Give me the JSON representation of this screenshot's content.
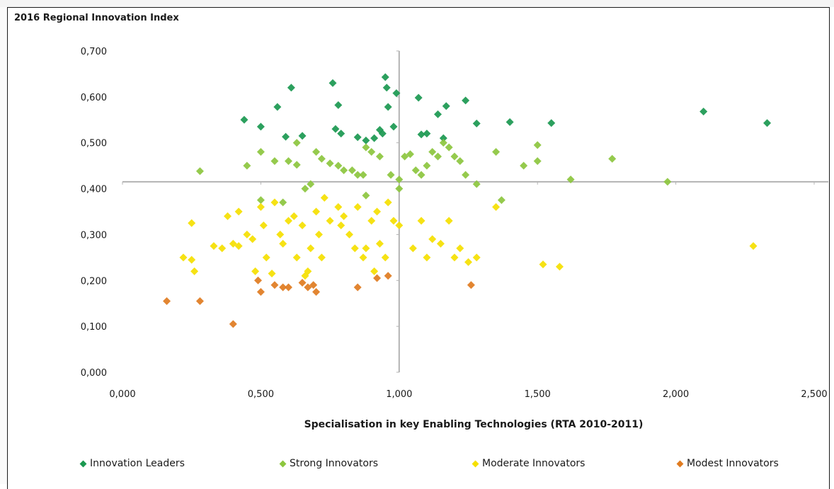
{
  "chart_data": {
    "type": "scatter",
    "title": "2016 Regional Innovation Index",
    "xlabel": "Specialisation in key Enabling Technologies (RTA 2010-2011)",
    "ylabel": "",
    "xlim": [
      0,
      2.5
    ],
    "ylim": [
      0,
      0.7
    ],
    "xticks": [
      "0,000",
      "0,500",
      "1,000",
      "1,500",
      "2,000",
      "2,500"
    ],
    "yticks": [
      "0,000",
      "0,100",
      "0,200",
      "0,300",
      "0,400",
      "0,500",
      "0,600",
      "0,700"
    ],
    "reference_lines": {
      "x": 1.0,
      "y": 0.415
    },
    "grid": false,
    "legend": "bottom",
    "series": [
      {
        "name": "Innovation Leaders",
        "color": "#1a9850",
        "points": [
          [
            0.95,
            0.643
          ],
          [
            0.955,
            0.62
          ],
          [
            0.99,
            0.608
          ],
          [
            0.61,
            0.62
          ],
          [
            0.76,
            0.63
          ],
          [
            0.96,
            0.578
          ],
          [
            1.07,
            0.598
          ],
          [
            1.24,
            0.592
          ],
          [
            0.56,
            0.578
          ],
          [
            0.78,
            0.582
          ],
          [
            1.17,
            0.58
          ],
          [
            1.14,
            0.562
          ],
          [
            2.1,
            0.568
          ],
          [
            2.33,
            0.543
          ],
          [
            0.44,
            0.55
          ],
          [
            0.5,
            0.535
          ],
          [
            1.4,
            0.545
          ],
          [
            1.55,
            0.543
          ],
          [
            1.28,
            0.542
          ],
          [
            0.98,
            0.535
          ],
          [
            0.77,
            0.53
          ],
          [
            0.93,
            0.528
          ],
          [
            0.94,
            0.52
          ],
          [
            0.65,
            0.515
          ],
          [
            1.08,
            0.518
          ],
          [
            1.1,
            0.52
          ],
          [
            0.59,
            0.513
          ],
          [
            0.85,
            0.512
          ],
          [
            0.91,
            0.51
          ],
          [
            1.16,
            0.51
          ],
          [
            0.88,
            0.505
          ],
          [
            0.79,
            0.52
          ]
        ]
      },
      {
        "name": "Strong Innovators",
        "color": "#8cc63e",
        "points": [
          [
            0.28,
            0.438
          ],
          [
            0.45,
            0.45
          ],
          [
            0.5,
            0.48
          ],
          [
            0.55,
            0.46
          ],
          [
            0.6,
            0.46
          ],
          [
            0.63,
            0.5
          ],
          [
            0.63,
            0.452
          ],
          [
            0.7,
            0.48
          ],
          [
            0.72,
            0.465
          ],
          [
            0.75,
            0.455
          ],
          [
            0.78,
            0.45
          ],
          [
            0.8,
            0.44
          ],
          [
            0.83,
            0.44
          ],
          [
            0.85,
            0.43
          ],
          [
            0.87,
            0.43
          ],
          [
            0.88,
            0.49
          ],
          [
            0.9,
            0.48
          ],
          [
            0.93,
            0.47
          ],
          [
            0.97,
            0.43
          ],
          [
            1.0,
            0.42
          ],
          [
            1.02,
            0.47
          ],
          [
            1.04,
            0.475
          ],
          [
            1.06,
            0.44
          ],
          [
            1.08,
            0.43
          ],
          [
            1.1,
            0.45
          ],
          [
            1.12,
            0.48
          ],
          [
            1.14,
            0.47
          ],
          [
            1.16,
            0.5
          ],
          [
            1.18,
            0.49
          ],
          [
            1.2,
            0.47
          ],
          [
            1.22,
            0.46
          ],
          [
            1.24,
            0.43
          ],
          [
            1.28,
            0.41
          ],
          [
            1.35,
            0.48
          ],
          [
            1.45,
            0.45
          ],
          [
            1.5,
            0.495
          ],
          [
            1.5,
            0.46
          ],
          [
            1.62,
            0.42
          ],
          [
            1.77,
            0.465
          ],
          [
            1.97,
            0.415
          ],
          [
            0.66,
            0.4
          ],
          [
            0.68,
            0.41
          ],
          [
            0.5,
            0.375
          ],
          [
            0.58,
            0.37
          ],
          [
            0.88,
            0.385
          ],
          [
            1.37,
            0.375
          ],
          [
            1.0,
            0.4
          ]
        ]
      },
      {
        "name": "Moderate Innovators",
        "color": "#f5e000",
        "points": [
          [
            0.25,
            0.325
          ],
          [
            0.22,
            0.25
          ],
          [
            0.25,
            0.245
          ],
          [
            0.26,
            0.22
          ],
          [
            0.33,
            0.275
          ],
          [
            0.36,
            0.27
          ],
          [
            0.38,
            0.34
          ],
          [
            0.4,
            0.28
          ],
          [
            0.42,
            0.35
          ],
          [
            0.42,
            0.275
          ],
          [
            0.45,
            0.3
          ],
          [
            0.47,
            0.29
          ],
          [
            0.48,
            0.22
          ],
          [
            0.5,
            0.36
          ],
          [
            0.51,
            0.32
          ],
          [
            0.52,
            0.25
          ],
          [
            0.55,
            0.37
          ],
          [
            0.57,
            0.3
          ],
          [
            0.58,
            0.28
          ],
          [
            0.6,
            0.33
          ],
          [
            0.62,
            0.34
          ],
          [
            0.63,
            0.25
          ],
          [
            0.65,
            0.32
          ],
          [
            0.67,
            0.22
          ],
          [
            0.68,
            0.27
          ],
          [
            0.7,
            0.35
          ],
          [
            0.71,
            0.3
          ],
          [
            0.72,
            0.25
          ],
          [
            0.73,
            0.38
          ],
          [
            0.75,
            0.33
          ],
          [
            0.78,
            0.36
          ],
          [
            0.79,
            0.32
          ],
          [
            0.8,
            0.34
          ],
          [
            0.82,
            0.3
          ],
          [
            0.84,
            0.27
          ],
          [
            0.85,
            0.36
          ],
          [
            0.87,
            0.25
          ],
          [
            0.88,
            0.27
          ],
          [
            0.9,
            0.33
          ],
          [
            0.91,
            0.22
          ],
          [
            0.92,
            0.35
          ],
          [
            0.93,
            0.28
          ],
          [
            0.95,
            0.25
          ],
          [
            0.96,
            0.37
          ],
          [
            0.98,
            0.33
          ],
          [
            1.0,
            0.32
          ],
          [
            1.05,
            0.27
          ],
          [
            1.08,
            0.33
          ],
          [
            1.1,
            0.25
          ],
          [
            1.12,
            0.29
          ],
          [
            1.15,
            0.28
          ],
          [
            1.18,
            0.33
          ],
          [
            1.2,
            0.25
          ],
          [
            1.22,
            0.27
          ],
          [
            1.25,
            0.24
          ],
          [
            1.28,
            0.25
          ],
          [
            1.35,
            0.36
          ],
          [
            1.52,
            0.235
          ],
          [
            1.58,
            0.23
          ],
          [
            2.28,
            0.275
          ],
          [
            0.66,
            0.21
          ],
          [
            0.54,
            0.215
          ]
        ]
      },
      {
        "name": "Modest Innovators",
        "color": "#e07b1f",
        "points": [
          [
            0.16,
            0.155
          ],
          [
            0.28,
            0.155
          ],
          [
            0.4,
            0.105
          ],
          [
            0.49,
            0.2
          ],
          [
            0.5,
            0.175
          ],
          [
            0.55,
            0.19
          ],
          [
            0.58,
            0.185
          ],
          [
            0.6,
            0.185
          ],
          [
            0.65,
            0.195
          ],
          [
            0.67,
            0.185
          ],
          [
            0.69,
            0.19
          ],
          [
            0.7,
            0.175
          ],
          [
            0.85,
            0.185
          ],
          [
            0.92,
            0.205
          ],
          [
            0.96,
            0.21
          ],
          [
            1.26,
            0.19
          ]
        ]
      }
    ]
  }
}
